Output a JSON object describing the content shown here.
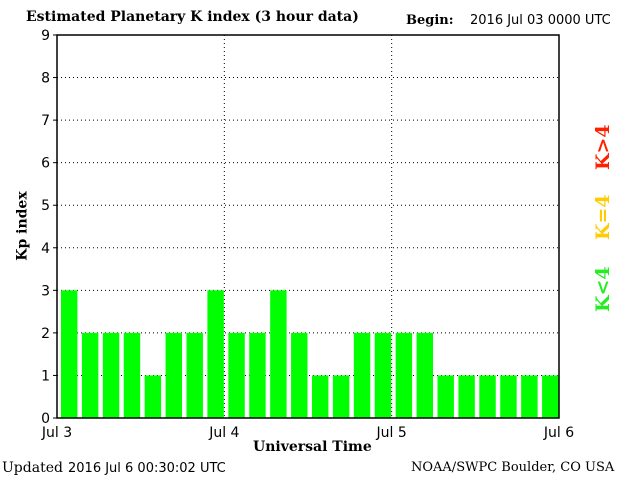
{
  "chart_data": {
    "type": "bar",
    "title": "Estimated Planetary K index (3 hour data)",
    "begin_label": "Begin:",
    "begin_value": "2016 Jul 03 0000 UTC",
    "xlabel": "Universal Time",
    "ylabel": "Kp index",
    "ylim": [
      0,
      9
    ],
    "yticks": [
      "0",
      "1",
      "2",
      "3",
      "4",
      "5",
      "6",
      "7",
      "8",
      "9"
    ],
    "xticks": [
      "Jul 3",
      "Jul 4",
      "Jul 5",
      "Jul 6"
    ],
    "values": [
      3,
      2,
      2,
      2,
      1,
      2,
      2,
      3,
      2,
      2,
      3,
      2,
      1,
      1,
      2,
      2,
      2,
      2,
      1,
      1,
      1,
      1,
      1,
      1
    ],
    "bar_color": "#00ff00",
    "legend": [
      {
        "label": "K>4",
        "color": "#ff2000"
      },
      {
        "label": "K=4",
        "color": "#ffcc00"
      },
      {
        "label": "K<4",
        "color": "#22ee22"
      }
    ],
    "grid": true
  },
  "footer": {
    "updated_label": "Updated",
    "updated_value": "2016 Jul  6 00:30:02 UTC",
    "credit": "NOAA/SWPC Boulder, CO USA"
  }
}
